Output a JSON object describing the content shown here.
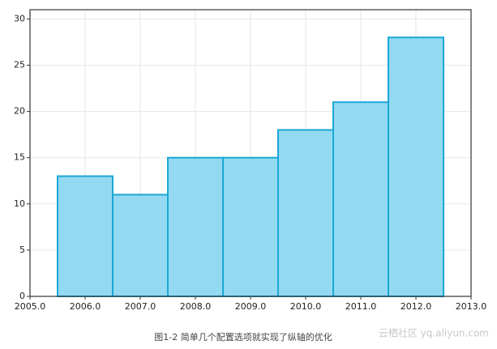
{
  "chart_data": {
    "type": "bar",
    "x": [
      2006,
      2007,
      2008,
      2009,
      2010,
      2011,
      2012
    ],
    "values": [
      13,
      11,
      15,
      15,
      18,
      21,
      28
    ],
    "color": "#93d9f2",
    "edge_color": "#1aa8d4",
    "xlim": [
      2005,
      2013
    ],
    "xticks": [
      {
        "value": 2005,
        "label": "2005.0"
      },
      {
        "value": 2006,
        "label": "2006.0"
      },
      {
        "value": 2007,
        "label": "2007.0"
      },
      {
        "value": 2008,
        "label": "2008.0"
      },
      {
        "value": 2009,
        "label": "2009.0"
      },
      {
        "value": 2010,
        "label": "2010.0"
      },
      {
        "value": 2011,
        "label": "2011.0"
      },
      {
        "value": 2012,
        "label": "2012.0"
      },
      {
        "value": 2013,
        "label": "2013.0"
      }
    ],
    "ylim": [
      0,
      31
    ],
    "yticks": [
      0,
      5,
      10,
      15,
      20,
      25,
      30
    ],
    "grid": true,
    "caption": "图1-2 简单几个配置选项就实现了纵轴的优化",
    "watermark": "云栖社区 yq.aliyun.com"
  }
}
